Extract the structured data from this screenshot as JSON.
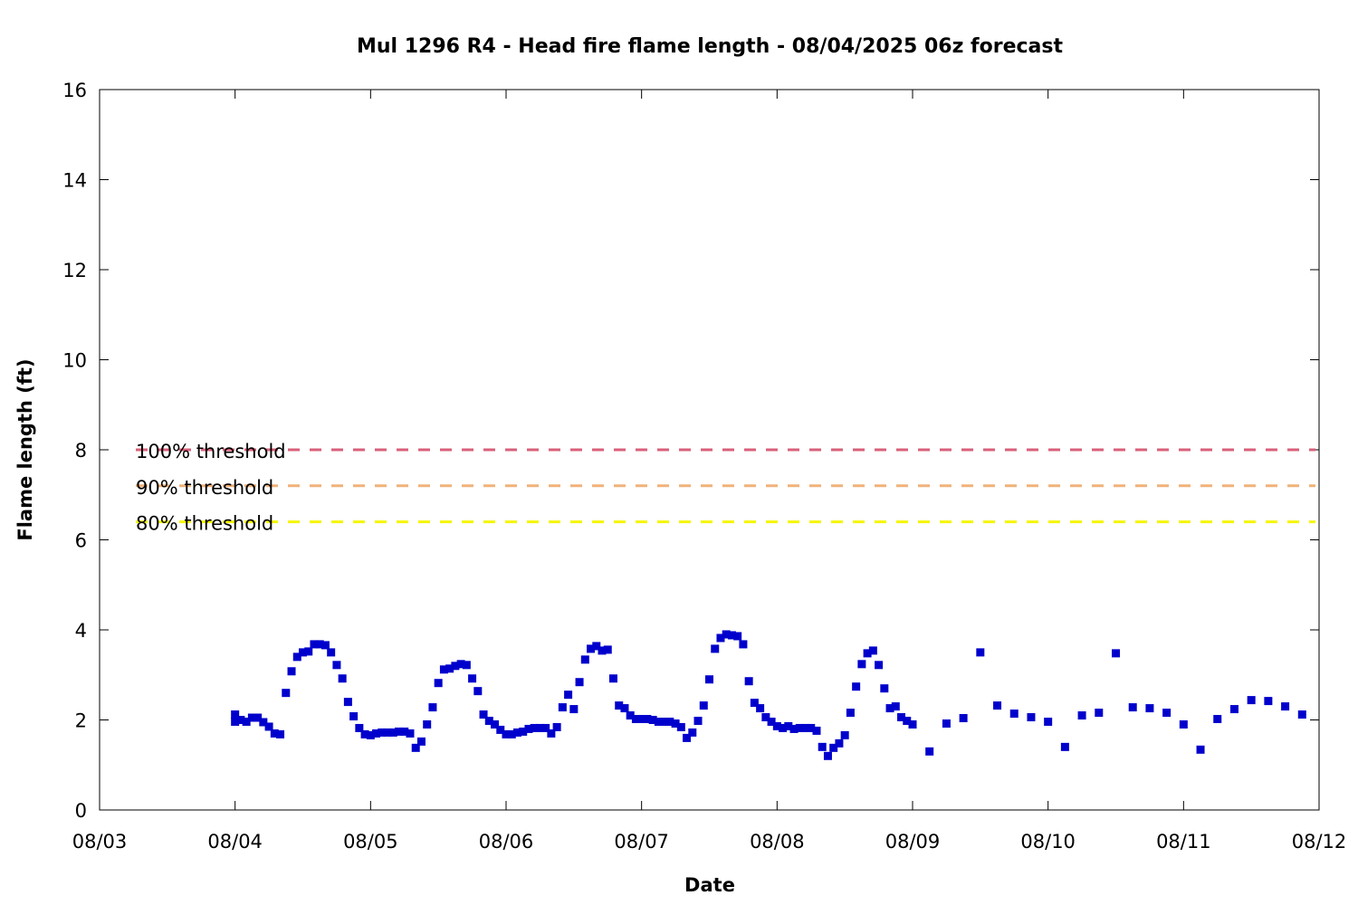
{
  "chart_data": {
    "type": "scatter",
    "title": "Mul 1296 R4 - Head fire flame length - 08/04/2025 06z forecast",
    "xlabel": "Date",
    "ylabel": "Flame length (ft)",
    "x_axis": {
      "min": "2025-08-03T00:00",
      "max": "2025-08-12T00:00",
      "tick_labels": [
        "08/03",
        "08/04",
        "08/05",
        "08/06",
        "08/07",
        "08/08",
        "08/09",
        "08/10",
        "08/11",
        "08/12"
      ]
    },
    "y_axis": {
      "min": 0,
      "max": 16,
      "tick_labels": [
        "0",
        "2",
        "4",
        "6",
        "8",
        "10",
        "12",
        "14",
        "16"
      ]
    },
    "grid": false,
    "thresholds": [
      {
        "name": "100% threshold",
        "value": 8.0,
        "color": "#d9607a"
      },
      {
        "name": "90% threshold",
        "value": 7.2,
        "color": "#f0b27a"
      },
      {
        "name": "80% threshold",
        "value": 6.4,
        "color": "#f5f500"
      }
    ],
    "series": [
      {
        "marker_color": "#0000cc",
        "points": [
          [
            "2025-08-04T00:00",
            1.96
          ],
          [
            "2025-08-04T00:00",
            2.12
          ],
          [
            "2025-08-04T01:00",
            2.0
          ],
          [
            "2025-08-04T02:00",
            1.96
          ],
          [
            "2025-08-04T03:00",
            2.05
          ],
          [
            "2025-08-04T04:00",
            2.05
          ],
          [
            "2025-08-04T05:00",
            1.95
          ],
          [
            "2025-08-04T06:00",
            1.85
          ],
          [
            "2025-08-04T07:00",
            1.7
          ],
          [
            "2025-08-04T08:00",
            1.68
          ],
          [
            "2025-08-04T09:00",
            2.6
          ],
          [
            "2025-08-04T10:00",
            3.08
          ],
          [
            "2025-08-04T11:00",
            3.4
          ],
          [
            "2025-08-04T12:00",
            3.5
          ],
          [
            "2025-08-04T13:00",
            3.52
          ],
          [
            "2025-08-04T14:00",
            3.68
          ],
          [
            "2025-08-04T15:00",
            3.68
          ],
          [
            "2025-08-04T16:00",
            3.66
          ],
          [
            "2025-08-04T17:00",
            3.5
          ],
          [
            "2025-08-04T18:00",
            3.22
          ],
          [
            "2025-08-04T19:00",
            2.92
          ],
          [
            "2025-08-04T20:00",
            2.4
          ],
          [
            "2025-08-04T21:00",
            2.08
          ],
          [
            "2025-08-04T22:00",
            1.82
          ],
          [
            "2025-08-04T23:00",
            1.68
          ],
          [
            "2025-08-05T00:00",
            1.66
          ],
          [
            "2025-08-05T01:00",
            1.7
          ],
          [
            "2025-08-05T02:00",
            1.72
          ],
          [
            "2025-08-05T03:00",
            1.72
          ],
          [
            "2025-08-05T04:00",
            1.72
          ],
          [
            "2025-08-05T05:00",
            1.74
          ],
          [
            "2025-08-05T06:00",
            1.74
          ],
          [
            "2025-08-05T07:00",
            1.7
          ],
          [
            "2025-08-05T08:00",
            1.38
          ],
          [
            "2025-08-05T09:00",
            1.52
          ],
          [
            "2025-08-05T10:00",
            1.9
          ],
          [
            "2025-08-05T11:00",
            2.28
          ],
          [
            "2025-08-05T12:00",
            2.82
          ],
          [
            "2025-08-05T13:00",
            3.12
          ],
          [
            "2025-08-05T14:00",
            3.14
          ],
          [
            "2025-08-05T15:00",
            3.2
          ],
          [
            "2025-08-05T16:00",
            3.24
          ],
          [
            "2025-08-05T17:00",
            3.22
          ],
          [
            "2025-08-05T18:00",
            2.92
          ],
          [
            "2025-08-05T19:00",
            2.64
          ],
          [
            "2025-08-05T20:00",
            2.12
          ],
          [
            "2025-08-05T21:00",
            1.98
          ],
          [
            "2025-08-05T22:00",
            1.9
          ],
          [
            "2025-08-05T23:00",
            1.78
          ],
          [
            "2025-08-06T00:00",
            1.68
          ],
          [
            "2025-08-06T01:00",
            1.68
          ],
          [
            "2025-08-06T02:00",
            1.72
          ],
          [
            "2025-08-06T03:00",
            1.74
          ],
          [
            "2025-08-06T04:00",
            1.8
          ],
          [
            "2025-08-06T05:00",
            1.82
          ],
          [
            "2025-08-06T06:00",
            1.82
          ],
          [
            "2025-08-06T07:00",
            1.82
          ],
          [
            "2025-08-06T08:00",
            1.7
          ],
          [
            "2025-08-06T09:00",
            1.84
          ],
          [
            "2025-08-06T10:00",
            2.28
          ],
          [
            "2025-08-06T11:00",
            2.56
          ],
          [
            "2025-08-06T12:00",
            2.24
          ],
          [
            "2025-08-06T13:00",
            2.84
          ],
          [
            "2025-08-06T14:00",
            3.34
          ],
          [
            "2025-08-06T15:00",
            3.58
          ],
          [
            "2025-08-06T16:00",
            3.64
          ],
          [
            "2025-08-06T17:00",
            3.54
          ],
          [
            "2025-08-06T18:00",
            3.56
          ],
          [
            "2025-08-06T19:00",
            2.92
          ],
          [
            "2025-08-06T20:00",
            2.32
          ],
          [
            "2025-08-06T21:00",
            2.26
          ],
          [
            "2025-08-06T22:00",
            2.1
          ],
          [
            "2025-08-06T23:00",
            2.02
          ],
          [
            "2025-08-07T00:00",
            2.02
          ],
          [
            "2025-08-07T01:00",
            2.02
          ],
          [
            "2025-08-07T02:00",
            2.0
          ],
          [
            "2025-08-07T03:00",
            1.96
          ],
          [
            "2025-08-07T04:00",
            1.96
          ],
          [
            "2025-08-07T05:00",
            1.96
          ],
          [
            "2025-08-07T06:00",
            1.92
          ],
          [
            "2025-08-07T07:00",
            1.84
          ],
          [
            "2025-08-07T08:00",
            1.6
          ],
          [
            "2025-08-07T09:00",
            1.72
          ],
          [
            "2025-08-07T10:00",
            1.98
          ],
          [
            "2025-08-07T11:00",
            2.32
          ],
          [
            "2025-08-07T12:00",
            2.9
          ],
          [
            "2025-08-07T13:00",
            3.58
          ],
          [
            "2025-08-07T14:00",
            3.82
          ],
          [
            "2025-08-07T15:00",
            3.9
          ],
          [
            "2025-08-07T16:00",
            3.88
          ],
          [
            "2025-08-07T17:00",
            3.86
          ],
          [
            "2025-08-07T18:00",
            3.68
          ],
          [
            "2025-08-07T19:00",
            2.86
          ],
          [
            "2025-08-07T20:00",
            2.38
          ],
          [
            "2025-08-07T21:00",
            2.26
          ],
          [
            "2025-08-07T22:00",
            2.06
          ],
          [
            "2025-08-07T23:00",
            1.96
          ],
          [
            "2025-08-08T00:00",
            1.86
          ],
          [
            "2025-08-08T01:00",
            1.82
          ],
          [
            "2025-08-08T02:00",
            1.86
          ],
          [
            "2025-08-08T03:00",
            1.8
          ],
          [
            "2025-08-08T04:00",
            1.82
          ],
          [
            "2025-08-08T05:00",
            1.82
          ],
          [
            "2025-08-08T06:00",
            1.82
          ],
          [
            "2025-08-08T07:00",
            1.76
          ],
          [
            "2025-08-08T08:00",
            1.4
          ],
          [
            "2025-08-08T09:00",
            1.2
          ],
          [
            "2025-08-08T10:00",
            1.38
          ],
          [
            "2025-08-08T11:00",
            1.48
          ],
          [
            "2025-08-08T12:00",
            1.66
          ],
          [
            "2025-08-08T13:00",
            2.16
          ],
          [
            "2025-08-08T14:00",
            2.74
          ],
          [
            "2025-08-08T15:00",
            3.24
          ],
          [
            "2025-08-08T16:00",
            3.48
          ],
          [
            "2025-08-08T17:00",
            3.54
          ],
          [
            "2025-08-08T18:00",
            3.22
          ],
          [
            "2025-08-08T19:00",
            2.7
          ],
          [
            "2025-08-08T20:00",
            2.26
          ],
          [
            "2025-08-08T21:00",
            2.3
          ],
          [
            "2025-08-08T22:00",
            2.06
          ],
          [
            "2025-08-08T23:00",
            1.98
          ],
          [
            "2025-08-09T00:00",
            1.9
          ],
          [
            "2025-08-09T03:00",
            1.3
          ],
          [
            "2025-08-09T06:00",
            1.92
          ],
          [
            "2025-08-09T09:00",
            2.04
          ],
          [
            "2025-08-09T12:00",
            3.5
          ],
          [
            "2025-08-09T15:00",
            2.32
          ],
          [
            "2025-08-09T18:00",
            2.14
          ],
          [
            "2025-08-09T21:00",
            2.06
          ],
          [
            "2025-08-10T00:00",
            1.96
          ],
          [
            "2025-08-10T03:00",
            1.4
          ],
          [
            "2025-08-10T06:00",
            2.1
          ],
          [
            "2025-08-10T09:00",
            2.16
          ],
          [
            "2025-08-10T12:00",
            3.48
          ],
          [
            "2025-08-10T15:00",
            2.28
          ],
          [
            "2025-08-10T18:00",
            2.26
          ],
          [
            "2025-08-10T21:00",
            2.16
          ],
          [
            "2025-08-11T00:00",
            1.9
          ],
          [
            "2025-08-11T03:00",
            1.34
          ],
          [
            "2025-08-11T06:00",
            2.02
          ],
          [
            "2025-08-11T09:00",
            2.24
          ],
          [
            "2025-08-11T12:00",
            2.44
          ],
          [
            "2025-08-11T15:00",
            2.42
          ],
          [
            "2025-08-11T18:00",
            2.3
          ],
          [
            "2025-08-11T21:00",
            2.12
          ]
        ]
      }
    ]
  }
}
